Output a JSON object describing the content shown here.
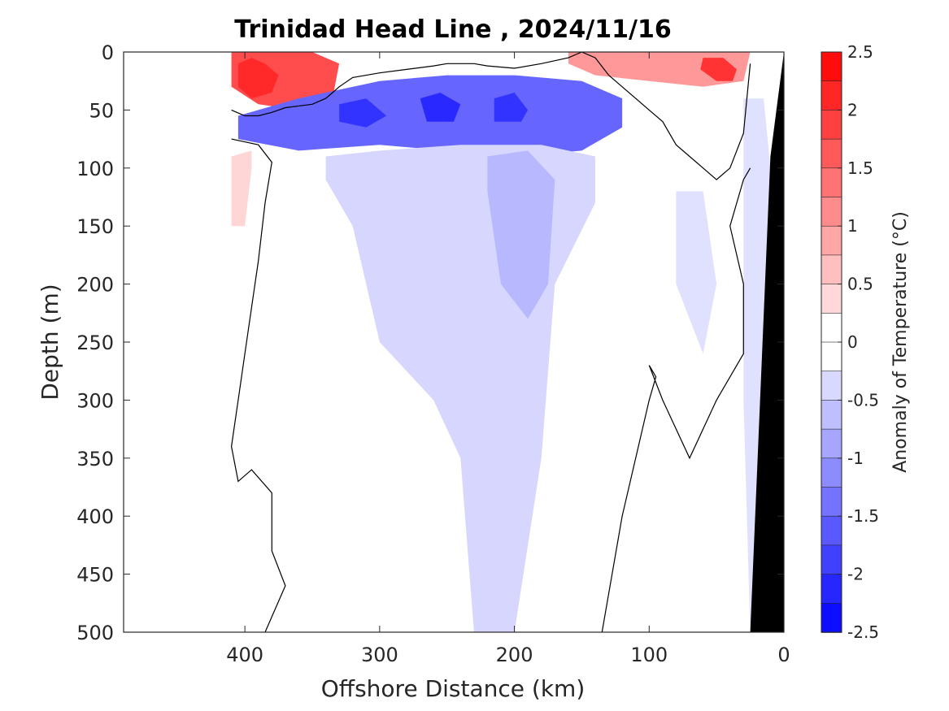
{
  "chart_data": {
    "type": "heatmap",
    "title": "Trinidad Head Line , 2024/11/16",
    "xlabel": "Offshore Distance (km)",
    "ylabel": "Depth (m)",
    "colorbar_label": "Anomaly of Temperature (°C)",
    "x_reversed": true,
    "xlim": [
      490,
      0
    ],
    "ylim": [
      500,
      0
    ],
    "y_reversed": true,
    "x_ticks": [
      400,
      300,
      200,
      100,
      0
    ],
    "y_ticks": [
      0,
      50,
      100,
      150,
      200,
      250,
      300,
      350,
      400,
      450,
      500
    ],
    "colorbar": {
      "range": [
        -2.5,
        2.5
      ],
      "step": 0.25,
      "ticks": [
        "2.5",
        "2",
        "1.5",
        "1",
        "0.5",
        "0",
        "-0.5",
        "-1",
        "-1.5",
        "-2",
        "-2.5"
      ],
      "tick_values": [
        2.5,
        2,
        1.5,
        1,
        0.5,
        0,
        -0.5,
        -1,
        -1.5,
        -2,
        -2.5
      ]
    },
    "colors": {
      "warm_max": "#ff0000",
      "cool_max": "#0000ff",
      "zero": "#ffffff",
      "land": "#000000",
      "contour": "#000000"
    },
    "regions": [
      {
        "name": "warm-surface-offshore",
        "x": [
          410,
          395,
          380,
          370,
          350,
          330,
          335,
          360,
          390,
          410
        ],
        "y": [
          0,
          0,
          0,
          0,
          0,
          10,
          40,
          50,
          45,
          30
        ],
        "level": 1.75
      },
      {
        "name": "warm-surface-offshore-core",
        "x": [
          405,
          395,
          385,
          375,
          380,
          395,
          405
        ],
        "y": [
          10,
          5,
          10,
          20,
          35,
          40,
          30
        ],
        "level": 2.1
      },
      {
        "name": "warm-surface-nearshore",
        "x": [
          160,
          120,
          80,
          45,
          25,
          30,
          60,
          100,
          140,
          160
        ],
        "y": [
          0,
          0,
          0,
          0,
          0,
          25,
          30,
          25,
          20,
          10
        ],
        "level": 1.0
      },
      {
        "name": "warm-surface-nearshore-core",
        "x": [
          60,
          45,
          35,
          38,
          50,
          62
        ],
        "y": [
          5,
          5,
          15,
          25,
          25,
          15
        ],
        "level": 2.0
      },
      {
        "name": "warm-subsurface-offshore",
        "x": [
          410,
          395,
          395,
          400,
          410
        ],
        "y": [
          90,
          85,
          100,
          150,
          150
        ],
        "level": 0.4
      },
      {
        "name": "cool-subsurface-band",
        "x": [
          405,
          360,
          300,
          250,
          200,
          150,
          120,
          120,
          150,
          200,
          250,
          300,
          360,
          405
        ],
        "y": [
          55,
          40,
          25,
          20,
          20,
          25,
          40,
          65,
          85,
          90,
          85,
          80,
          85,
          75
        ],
        "level": -1.5
      },
      {
        "name": "cool-core-1",
        "x": [
          330,
          310,
          295,
          310,
          330
        ],
        "y": [
          45,
          40,
          55,
          65,
          60
        ],
        "level": -2.0
      },
      {
        "name": "cool-core-2",
        "x": [
          270,
          255,
          240,
          245,
          265
        ],
        "y": [
          40,
          35,
          45,
          60,
          60
        ],
        "level": -2.1
      },
      {
        "name": "cool-core-3",
        "x": [
          215,
          200,
          190,
          195,
          215
        ],
        "y": [
          40,
          35,
          50,
          60,
          60
        ],
        "level": -2.0
      },
      {
        "name": "cool-plume",
        "x": [
          340,
          300,
          240,
          180,
          140,
          140,
          170,
          180,
          200,
          230,
          240,
          260,
          300,
          320,
          340
        ],
        "y": [
          90,
          85,
          80,
          80,
          90,
          130,
          200,
          350,
          500,
          500,
          350,
          300,
          250,
          150,
          110
        ],
        "level": -0.4
      },
      {
        "name": "cool-plume-core",
        "x": [
          220,
          190,
          170,
          175,
          190,
          210,
          220
        ],
        "y": [
          90,
          85,
          110,
          200,
          230,
          200,
          120
        ],
        "level": -0.7
      },
      {
        "name": "cool-nearshore-column",
        "x": [
          30,
          15,
          10,
          12,
          25,
          30
        ],
        "y": [
          40,
          40,
          100,
          500,
          500,
          300
        ],
        "level": -0.3
      },
      {
        "name": "cool-coastal-patch",
        "x": [
          80,
          60,
          50,
          60,
          80
        ],
        "y": [
          120,
          120,
          200,
          260,
          200
        ],
        "level": -0.3
      }
    ],
    "contours_zero": [
      {
        "name": "zero-contour-offshore-top",
        "x": [
          410,
          400,
          390,
          380,
          370,
          350,
          340,
          335,
          330,
          320,
          300,
          280,
          260,
          250,
          240,
          230,
          220,
          200,
          180,
          160,
          150,
          140,
          130,
          120,
          110,
          100,
          90,
          80,
          70,
          60,
          50,
          40,
          30,
          25
        ],
        "y": [
          50,
          55,
          55,
          52,
          48,
          45,
          40,
          35,
          30,
          22,
          18,
          15,
          12,
          10,
          10,
          10,
          12,
          14,
          10,
          5,
          0,
          5,
          20,
          30,
          40,
          50,
          60,
          80,
          90,
          100,
          110,
          100,
          70,
          10
        ]
      },
      {
        "name": "zero-contour-offshore-left",
        "x": [
          410,
          390,
          380,
          385,
          390,
          395,
          400,
          405,
          410,
          405,
          395,
          380,
          380,
          370,
          385
        ],
        "y": [
          75,
          80,
          95,
          130,
          180,
          220,
          260,
          300,
          340,
          370,
          360,
          380,
          430,
          460,
          500
        ]
      },
      {
        "name": "zero-contour-nearshore",
        "x": [
          135,
          120,
          100,
          95,
          100,
          90,
          70,
          50,
          30,
          30,
          40,
          30,
          25
        ],
        "y": [
          500,
          400,
          300,
          280,
          270,
          300,
          350,
          300,
          260,
          200,
          150,
          110,
          100
        ]
      }
    ],
    "land": {
      "x": [
        0,
        0,
        25,
        10
      ],
      "y": [
        0,
        500,
        500,
        90
      ]
    }
  }
}
